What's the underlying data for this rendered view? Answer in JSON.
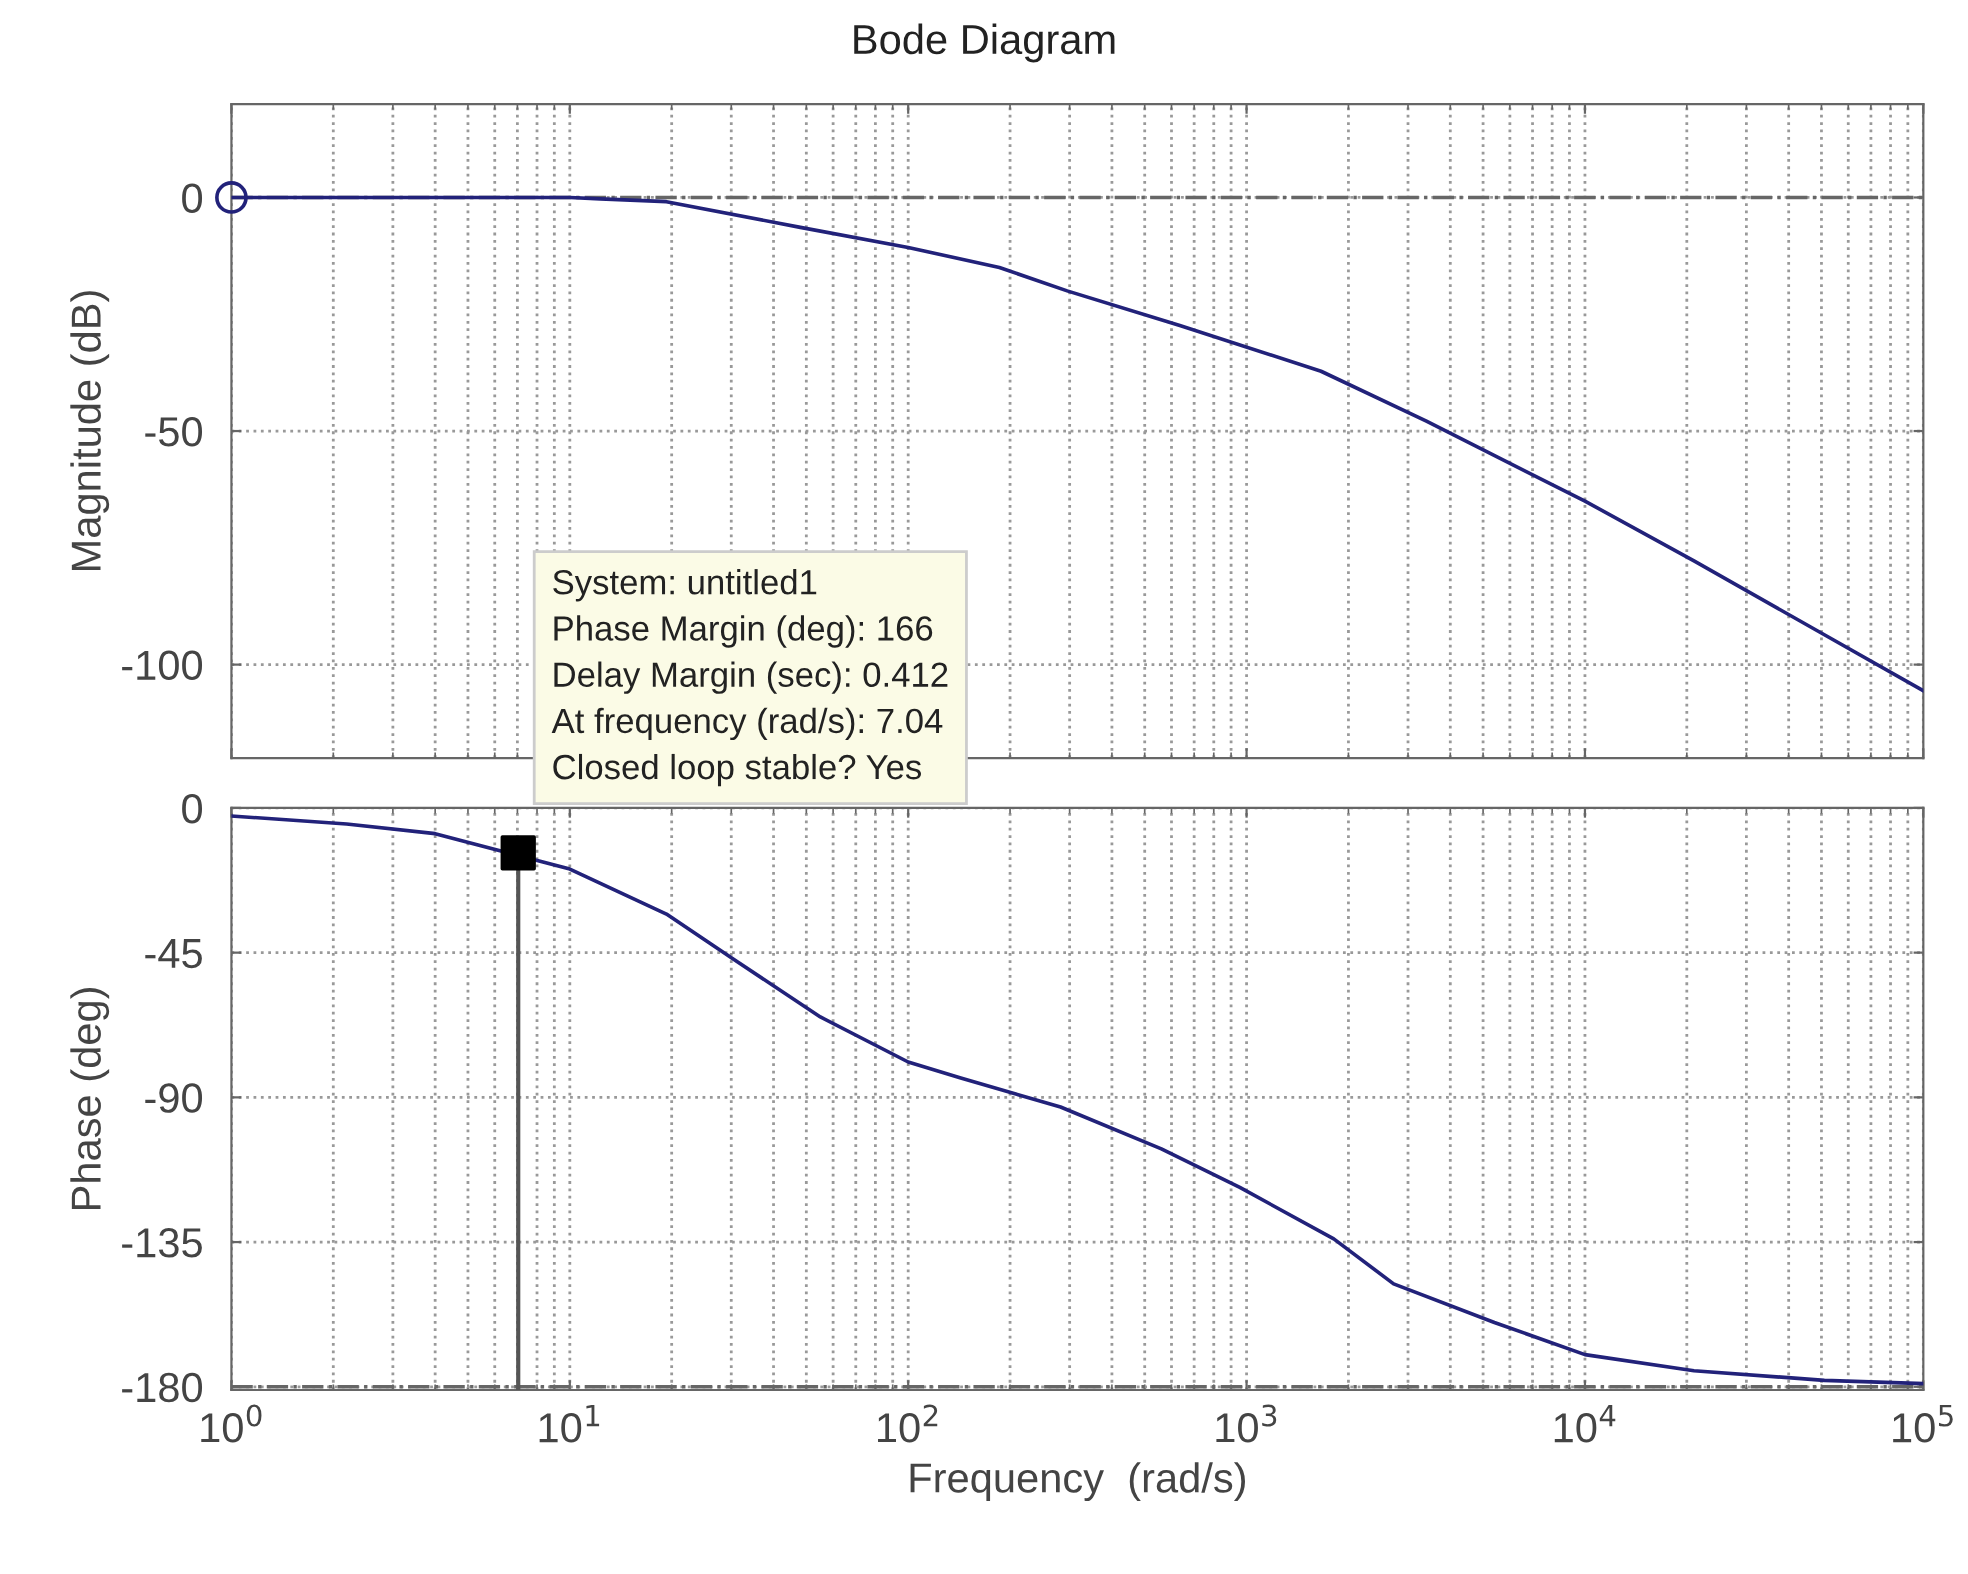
{
  "chart_data": [
    {
      "type": "line",
      "title": "Bode Diagram",
      "ylabel": "Magnitude (dB)",
      "series": [
        {
          "color": "#22227a",
          "x": [
            1,
            5,
            10,
            12.3,
            19.3,
            48,
            100,
            186,
            295,
            635,
            1660,
            3400,
            10000,
            21000,
            51000,
            100000
          ],
          "values": [
            0,
            0,
            0,
            -0.3,
            -0.9,
            -6.4,
            -10.7,
            -15,
            -20,
            -27.4,
            -37.2,
            -47.9,
            -65,
            -77.8,
            -93.6,
            -105.6
          ]
        },
        {
          "type": "scatter",
          "marker": "circle",
          "color": "#22227a",
          "x": [
            1
          ],
          "values": [
            0
          ]
        }
      ],
      "xlim": [
        1,
        100000
      ],
      "ylim": [
        -120,
        20
      ],
      "xticks": [
        {
          "value": 1,
          "label": null
        },
        {
          "value": 10,
          "label": null
        },
        {
          "value": 100,
          "label": null
        },
        {
          "value": 1000,
          "label": null
        },
        {
          "value": 10000,
          "label": null
        },
        {
          "value": 100000,
          "label": null
        }
      ],
      "yticks": [
        -100,
        -50,
        0
      ],
      "log": "x",
      "grid": true,
      "tick_labels": "y",
      "ref_lines": [
        {
          "axis": "y",
          "value": 0,
          "label": null,
          "color": "#666666",
          "line_style": "dashdot"
        }
      ]
    },
    {
      "type": "line",
      "xlabel": "Frequency  (rad/s)",
      "ylabel": "Phase (deg)",
      "series": [
        {
          "color": "#22227a",
          "x": [
            1,
            2.19,
            4,
            10,
            19.3,
            30.4,
            55,
            100,
            143,
            282,
            560,
            955,
            1810,
            2720,
            5400,
            10000,
            21000,
            51000,
            100000
          ],
          "values": [
            -2.5,
            -5,
            -8,
            -19,
            -33,
            -47,
            -65,
            -79,
            -84,
            -93,
            -106,
            -118,
            -134,
            -148,
            -160,
            -170,
            -175,
            -178,
            -179
          ]
        },
        {
          "type": "scatter",
          "marker": "square",
          "color": "#000000",
          "x": [
            7.04
          ],
          "values": [
            -14
          ]
        }
      ],
      "xlim": [
        1,
        100000
      ],
      "ylim": [
        -181,
        0
      ],
      "xticks": [
        {
          "value": 1,
          "label": "10$^{0}$"
        },
        {
          "value": 10,
          "label": "10$^{1}$"
        },
        {
          "value": 100,
          "label": "10$^{2}$"
        },
        {
          "value": 1000,
          "label": "10$^{3}$"
        },
        {
          "value": 10000,
          "label": "10$^{4}$"
        },
        {
          "value": 100000,
          "label": "10$^{5}$"
        }
      ],
      "yticks": [
        -180,
        -135,
        -90,
        -45,
        0
      ],
      "log": "x",
      "grid": true,
      "ref_lines": [
        {
          "axis": "y",
          "value": -180,
          "label": null,
          "color": "#666666",
          "line_style": "dashdot"
        },
        {
          "axis": "x",
          "value": 7.04,
          "label": null,
          "color": "#555555",
          "line_style": "solid"
        }
      ],
      "annotations": [
        {
          "text": "System: untitled1\nPhase Margin (deg): 166\nDelay Margin (sec): 0.412\nAt frequency (rad/s): 7.04\nClosed loop stable? Yes",
          "x": 7.04,
          "y": -14
        }
      ]
    }
  ]
}
